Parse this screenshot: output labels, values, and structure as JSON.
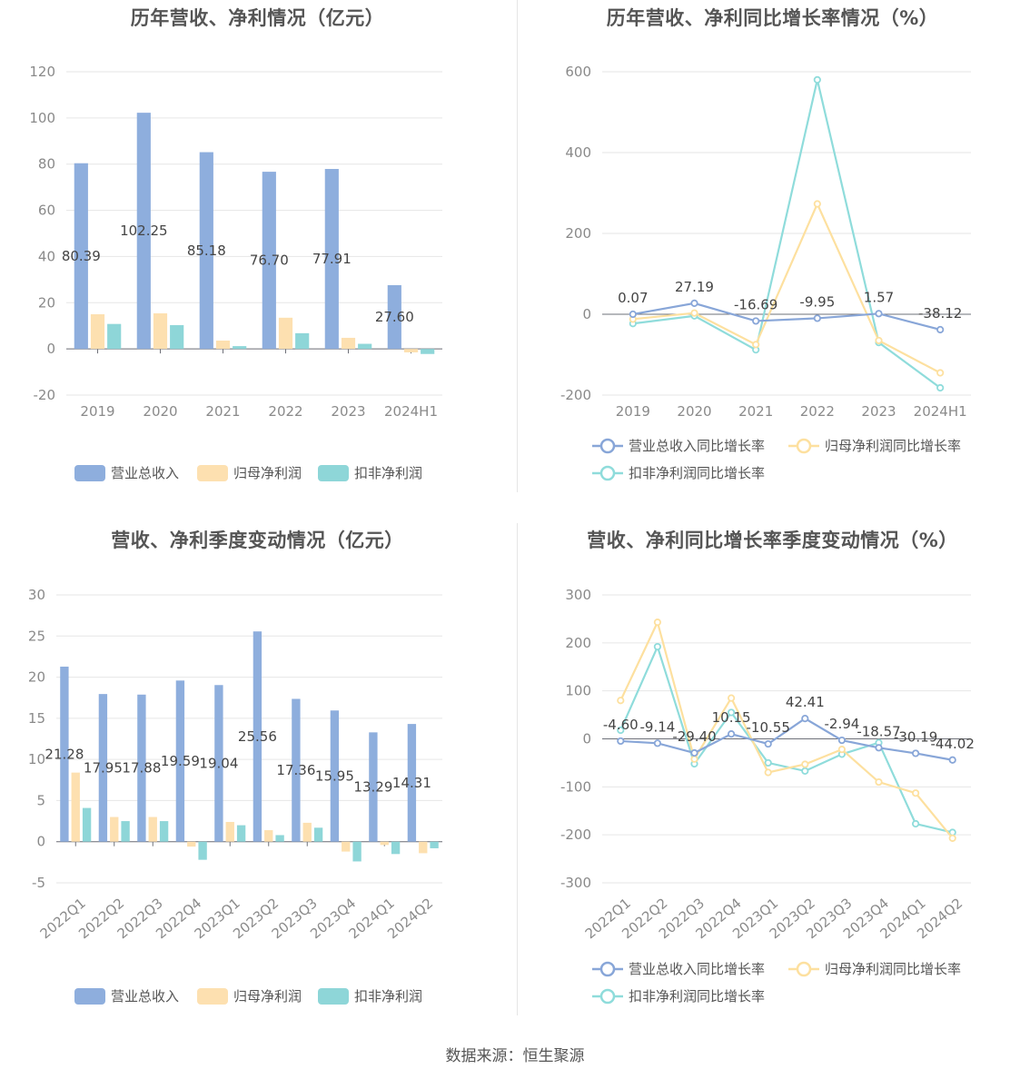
{
  "source": "数据来源：恒生聚源",
  "colors": {
    "revenue": "#8eaedd",
    "net": "#fde0b0",
    "deducted": "#8ed6d8",
    "revenue_line": "#88a6d8",
    "net_line": "#fde09f",
    "deducted_line": "#8fdcdb"
  },
  "charts": [
    {
      "title": "历年营收、净利情况（亿元）",
      "chart_data": {
        "type": "bar",
        "categories": [
          "2019",
          "2020",
          "2021",
          "2022",
          "2023",
          "2024H1"
        ],
        "yticks": [
          "120",
          "100",
          "80",
          "60",
          "40",
          "20",
          "0",
          "-20"
        ],
        "ylim": [
          -20,
          120
        ],
        "series": [
          {
            "name": "营业总收入",
            "values": [
              80.39,
              102.25,
              85.18,
              76.7,
              77.91,
              27.6
            ],
            "labels": [
              "80.39",
              "102.25",
              "85.18",
              "76.70",
              "77.91",
              "27.60"
            ]
          },
          {
            "name": "归母净利润",
            "values": [
              15.0,
              15.4,
              3.6,
              13.5,
              4.8,
              -1.5
            ]
          },
          {
            "name": "扣非净利润",
            "values": [
              10.8,
              10.3,
              1.2,
              6.8,
              2.2,
              -2.2
            ]
          }
        ],
        "legend": "bottom"
      }
    },
    {
      "title": "历年营收、净利同比增长率情况（%）",
      "chart_data": {
        "type": "line",
        "categories": [
          "2019",
          "2020",
          "2021",
          "2022",
          "2023",
          "2024H1"
        ],
        "yticks": [
          "600",
          "400",
          "200",
          "0",
          "-200"
        ],
        "ylim": [
          -200,
          600
        ],
        "series": [
          {
            "name": "营业总收入同比增长率",
            "values": [
              0.07,
              27.19,
              -16.69,
              -9.95,
              1.57,
              -38.12
            ],
            "labels": [
              "0.07",
              "27.19",
              "-16.69",
              "-9.95",
              "1.57",
              "-38.12"
            ]
          },
          {
            "name": "归母净利润同比增长率",
            "values": [
              -12,
              3,
              -75,
              273,
              -65,
              -145
            ]
          },
          {
            "name": "扣非净利润同比增长率",
            "values": [
              -23,
              -4,
              -88,
              580,
              -70,
              -182
            ]
          }
        ],
        "legend": "bottom"
      }
    },
    {
      "title": "营收、净利季度变动情况（亿元）",
      "chart_data": {
        "type": "bar",
        "categories": [
          "2022Q1",
          "2022Q2",
          "2022Q3",
          "2022Q4",
          "2023Q1",
          "2023Q2",
          "2023Q3",
          "2023Q4",
          "2024Q1",
          "2024Q2"
        ],
        "yticks": [
          "30",
          "25",
          "20",
          "15",
          "10",
          "5",
          "0",
          "-5"
        ],
        "ylim": [
          -5,
          30
        ],
        "series": [
          {
            "name": "营业总收入",
            "values": [
              21.28,
              17.95,
              17.88,
              19.59,
              19.04,
              25.56,
              17.36,
              15.95,
              13.29,
              14.31
            ],
            "labels": [
              "21.28",
              "17.95",
              "17.88",
              "19.59",
              "19.04",
              "25.56",
              "17.36",
              "15.95",
              "13.29",
              "14.31"
            ]
          },
          {
            "name": "归母净利润",
            "values": [
              8.4,
              3.0,
              3.0,
              -0.6,
              2.4,
              1.4,
              2.3,
              -1.2,
              -0.4,
              -1.4
            ]
          },
          {
            "name": "扣非净利润",
            "values": [
              4.1,
              2.5,
              2.5,
              -2.2,
              2.0,
              0.8,
              1.7,
              -2.4,
              -1.5,
              -0.8
            ]
          }
        ],
        "legend": "bottom"
      }
    },
    {
      "title": "营收、净利同比增长率季度变动情况（%）",
      "chart_data": {
        "type": "line",
        "categories": [
          "2022Q1",
          "2022Q2",
          "2022Q3",
          "2022Q4",
          "2023Q1",
          "2023Q2",
          "2023Q3",
          "2023Q4",
          "2024Q1",
          "2024Q2"
        ],
        "yticks": [
          "300",
          "200",
          "100",
          "0",
          "-100",
          "-200",
          "-300"
        ],
        "ylim": [
          -300,
          300
        ],
        "series": [
          {
            "name": "营业总收入同比增长率",
            "values": [
              -4.6,
              -9.14,
              -29.4,
              10.15,
              -10.55,
              42.41,
              -2.94,
              -18.57,
              -30.19,
              -44.02
            ],
            "labels": [
              "-4.60",
              "-9.14",
              "-29.40",
              "10.15",
              "-10.55",
              "42.41",
              "-2.94",
              "-18.57",
              "-30.19",
              "-44.02"
            ]
          },
          {
            "name": "归母净利润同比增长率",
            "values": [
              80,
              243,
              -42,
              85,
              -70,
              -53,
              -22,
              -90,
              -113,
              -207
            ]
          },
          {
            "name": "扣非净利润同比增长率",
            "values": [
              18,
              192,
              -52,
              55,
              -50,
              -67,
              -32,
              -8,
              -177,
              -195
            ]
          }
        ],
        "legend": "bottom"
      }
    }
  ]
}
